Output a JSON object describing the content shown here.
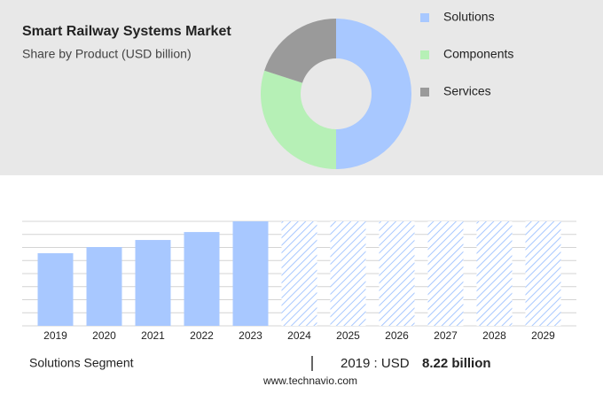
{
  "chart_data": [
    {
      "type": "pie",
      "title": "Smart Railway Systems Market",
      "subtitle": "Share by Product (USD billion)",
      "categories": [
        "Solutions",
        "Components",
        "Services"
      ],
      "values": [
        50,
        30,
        20
      ],
      "colors": [
        "#a8c8ff",
        "#b6f0b6",
        "#9a9a9a"
      ]
    },
    {
      "type": "bar",
      "categories": [
        "2019",
        "2020",
        "2021",
        "2022",
        "2023",
        "2024",
        "2025",
        "2026",
        "2027",
        "2028",
        "2029"
      ],
      "values": [
        8.22,
        8.92,
        9.72,
        10.62,
        11.83,
        null,
        null,
        null,
        null,
        null,
        null
      ],
      "color": "#a8c8ff",
      "ylim": [
        0,
        11.83
      ],
      "grid": true
    }
  ],
  "footer": {
    "segment": "Solutions Segment",
    "year_label": "2019 : USD",
    "value_label": "8.22 billion",
    "source": "www.technavio.com"
  }
}
